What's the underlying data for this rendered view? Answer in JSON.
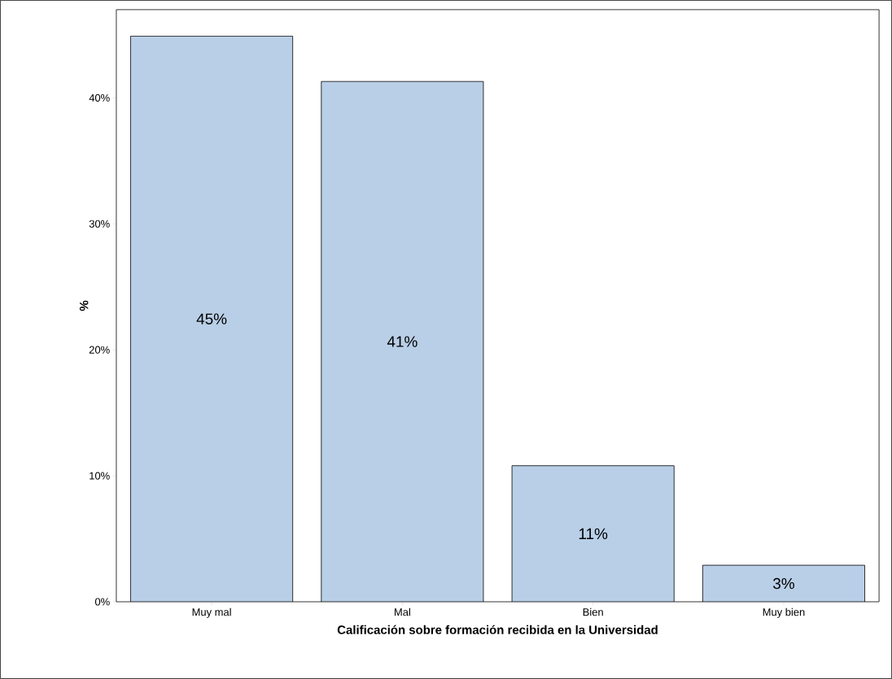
{
  "chart_data": {
    "type": "bar",
    "xlabel": "Calificación sobre formación recibida en la Universidad",
    "ylabel": "%",
    "categories": [
      "Muy mal",
      "Mal",
      "Bien",
      "Muy bien"
    ],
    "values": [
      44.9,
      41.3,
      10.8,
      2.9
    ],
    "value_labels": [
      "45%",
      "41%",
      "11%",
      "3%"
    ],
    "color": "#b9cfe7",
    "ylim": [
      0,
      47
    ],
    "yticks": [
      {
        "value": 0,
        "label": "0%"
      },
      {
        "value": 10,
        "label": "10%"
      },
      {
        "value": 20,
        "label": "20%"
      },
      {
        "value": 30,
        "label": "30%"
      },
      {
        "value": 40,
        "label": "40%"
      }
    ]
  }
}
